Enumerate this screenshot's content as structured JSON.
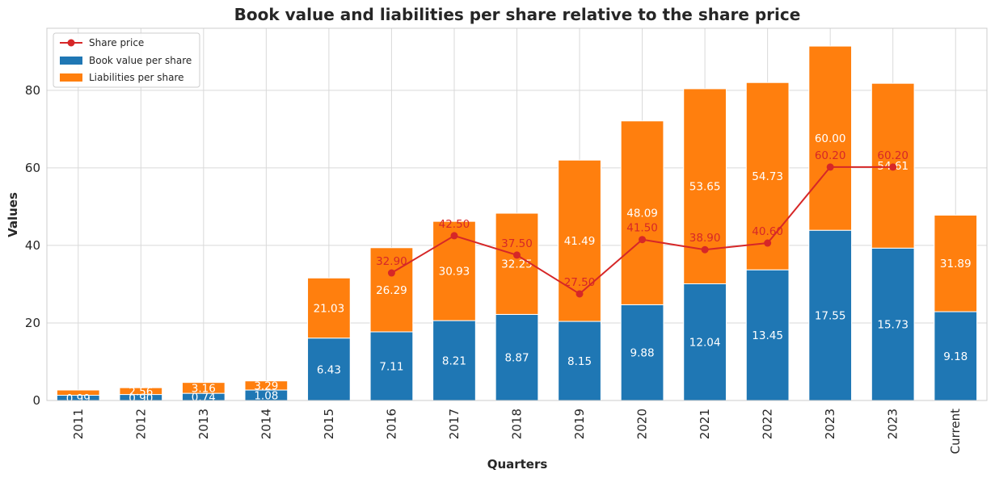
{
  "chart_data": {
    "type": "bar",
    "title": "Book value and liabilities per share relative to the share price",
    "xlabel": "Quarters",
    "ylabel": "Values",
    "ylim": [
      0,
      96
    ],
    "yticks": [
      0,
      20,
      40,
      60,
      80
    ],
    "grid": true,
    "legend_position": "top-left",
    "categories": [
      "2011",
      "2012",
      "2013",
      "2014",
      "2015",
      "2016",
      "2017",
      "2018",
      "2019",
      "2020",
      "2021",
      "2022",
      "2023",
      "2023",
      "Current"
    ],
    "series": [
      {
        "name": "Book value per share",
        "kind": "bar",
        "color": "#1f77b4",
        "values": [
          1.35,
          1.55,
          1.85,
          2.7,
          16.1,
          17.7,
          20.6,
          22.2,
          20.4,
          24.7,
          30.1,
          33.7,
          43.9,
          39.3,
          22.9
        ],
        "labels": [
          "0.99",
          "0.90",
          "0.74",
          "1.08",
          "6.43",
          "7.11",
          "8.21",
          "8.87",
          "8.15",
          "9.88",
          "12.04",
          "13.45",
          "17.55",
          "15.73",
          "9.18"
        ]
      },
      {
        "name": "Liabilities per share",
        "kind": "bar",
        "color": "#ff7f0e",
        "values": [
          1.35,
          1.75,
          2.8,
          2.35,
          15.5,
          21.7,
          25.6,
          26.1,
          41.6,
          47.4,
          50.3,
          48.3,
          47.5,
          42.5,
          24.9
        ],
        "labels": [
          "",
          "2.56",
          "3.16",
          "3.29",
          "21.03",
          "26.29",
          "30.93",
          "32.25",
          "41.49",
          "48.09",
          "53.65",
          "54.73",
          "60.00",
          "54.61",
          "31.89"
        ]
      },
      {
        "name": "Share price",
        "kind": "line",
        "color": "#d62728",
        "values": [
          null,
          null,
          null,
          null,
          null,
          32.9,
          42.5,
          37.5,
          27.5,
          41.5,
          38.9,
          40.6,
          60.2,
          60.2,
          null
        ],
        "labels": [
          "",
          "",
          "",
          "",
          "",
          "32.90",
          "42.50",
          "37.50",
          "27.50",
          "41.50",
          "38.90",
          "40.60",
          "60.20",
          "60.20",
          ""
        ]
      }
    ]
  }
}
